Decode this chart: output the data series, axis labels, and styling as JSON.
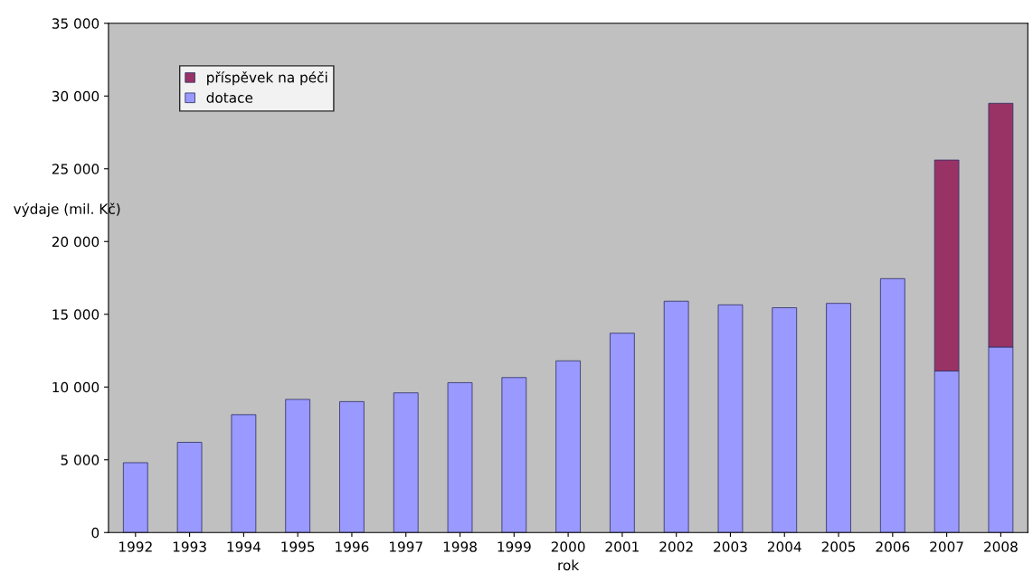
{
  "chart_data": {
    "type": "bar",
    "stacked": true,
    "xlabel": "rok",
    "ylabel": "výdaje (mil. Kč)",
    "categories": [
      "1992",
      "1993",
      "1994",
      "1995",
      "1996",
      "1997",
      "1998",
      "1999",
      "2000",
      "2001",
      "2002",
      "2003",
      "2004",
      "2005",
      "2006",
      "2007",
      "2008"
    ],
    "series": [
      {
        "name": "dotace",
        "color": "#9999ff",
        "values": [
          4800,
          6200,
          8100,
          9150,
          9000,
          9600,
          10300,
          10650,
          11800,
          13700,
          15900,
          15650,
          15450,
          15750,
          17450,
          11100,
          12750
        ]
      },
      {
        "name": "příspěvek na péči",
        "color": "#993366",
        "values": [
          null,
          null,
          null,
          null,
          null,
          null,
          null,
          null,
          null,
          null,
          null,
          null,
          null,
          null,
          null,
          14500,
          16750
        ]
      }
    ],
    "ylim": [
      0,
      35000
    ],
    "yticks": [
      0,
      {
        "value": 5000,
        "label": "5 000"
      },
      {
        "value": 10000,
        "label": "10 000"
      },
      {
        "value": 15000,
        "label": "15 000"
      },
      {
        "value": 20000,
        "label": "20 000"
      },
      {
        "value": 25000,
        "label": "25 000"
      },
      {
        "value": 30000,
        "label": "30 000"
      },
      {
        "value": 35000,
        "label": "35 000"
      }
    ],
    "grid": false,
    "legend": "top left"
  }
}
